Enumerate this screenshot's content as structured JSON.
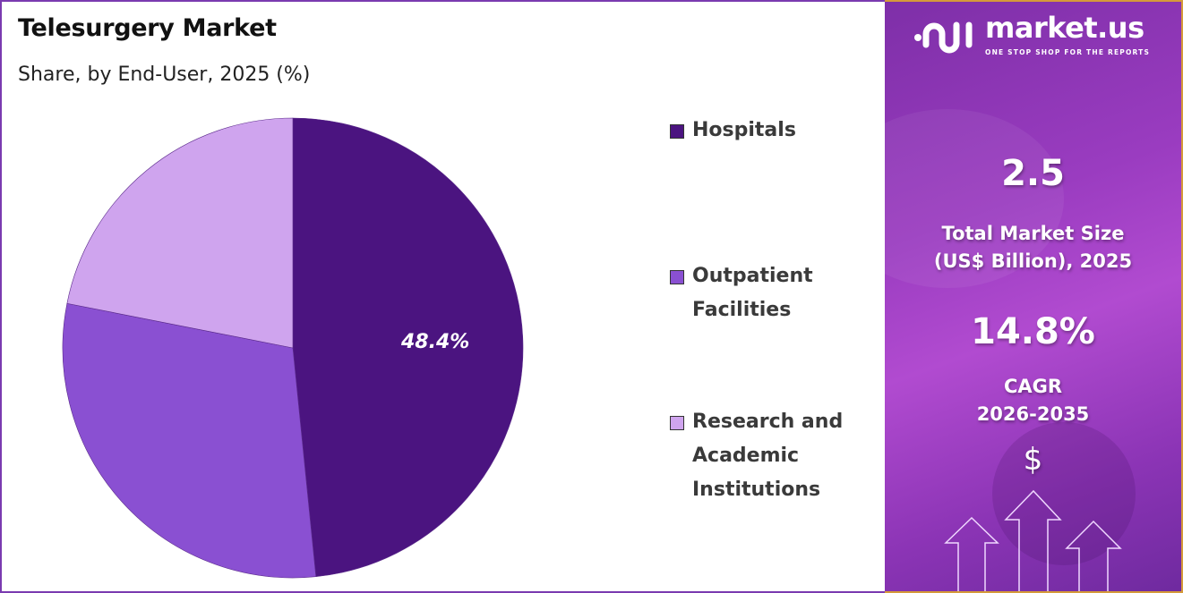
{
  "chart_data": {
    "type": "pie",
    "title": "Telesurgery Market",
    "subtitle": "Share, by End-User, 2025 (%)",
    "categories": [
      "Hospitals",
      "Outpatient Facilities",
      "Research and Academic Institutions"
    ],
    "values": [
      48.4,
      29.7,
      21.9
    ],
    "data_labels": [
      "48.4%",
      null,
      null
    ],
    "colors": [
      "#4b1480",
      "#8a50d2",
      "#cfa4ee"
    ],
    "legend_placement": "right",
    "legend": [
      "Hospitals",
      "Outpatient Facilities",
      "Research and Academic Institutions"
    ],
    "legend_lines": [
      [
        "Hospitals"
      ],
      [
        "Outpatient",
        "Facilities"
      ],
      [
        "Research and",
        "Academic",
        "Institutions"
      ]
    ]
  },
  "side_panel": {
    "logo_text": "market.us",
    "logo_tagline": "ONE STOP SHOP FOR THE REPORTS",
    "market_size_value": "2.5",
    "market_size_label_1": "Total Market Size",
    "market_size_label_2": "(US$ Billion), 2025",
    "cagr_value": "14.8%",
    "cagr_label_1": "CAGR",
    "cagr_label_2": "2026-2035",
    "currency_symbol": "$",
    "icons": [
      "dollar-icon",
      "up-arrow-icon"
    ]
  }
}
